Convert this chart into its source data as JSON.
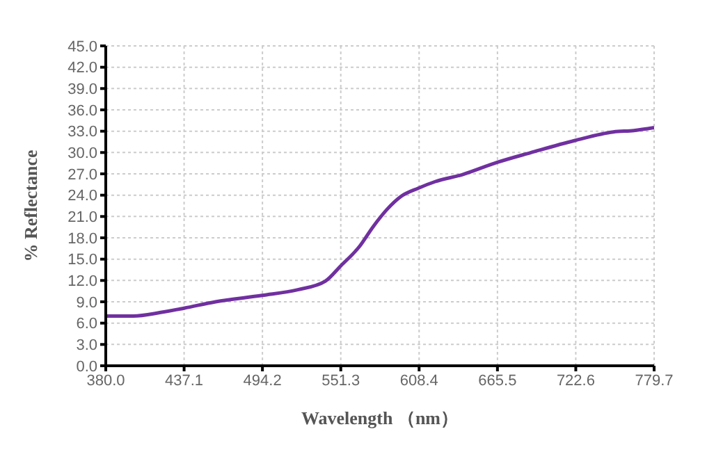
{
  "chart_data": {
    "type": "line",
    "xlabel": "Wavelength （nm）",
    "ylabel": "% Reflectance",
    "grid": true,
    "line_style": "solid",
    "marker": "none",
    "xlim": [
      380,
      779.7
    ],
    "ylim": [
      0,
      45
    ],
    "xticks": [
      {
        "value": 380,
        "label": "380.0"
      },
      437.1,
      494.2,
      551.3,
      608.4,
      665.5,
      722.6,
      779.7
    ],
    "yticks": [
      {
        "value": 0,
        "label": "0.0"
      },
      {
        "value": 3,
        "label": "3.0"
      },
      {
        "value": 6,
        "label": "6.0"
      },
      {
        "value": 9,
        "label": "9.0"
      },
      {
        "value": 12,
        "label": "12.0"
      },
      {
        "value": 15,
        "label": "15.0"
      },
      {
        "value": 18,
        "label": "18.0"
      },
      {
        "value": 21,
        "label": "21.0"
      },
      {
        "value": 24,
        "label": "24.0"
      },
      {
        "value": 27,
        "label": "27.0"
      },
      {
        "value": 30,
        "label": "30.0"
      },
      {
        "value": 33,
        "label": "33.0"
      },
      {
        "value": 36,
        "label": "36.0"
      },
      {
        "value": 39,
        "label": "39.0"
      },
      {
        "value": 42,
        "label": "42.0"
      },
      {
        "value": 45,
        "label": "45.0"
      }
    ],
    "x": [
      380,
      400,
      420,
      437,
      460,
      494,
      520,
      540,
      551,
      565,
      575,
      585,
      595,
      608,
      620,
      640,
      665,
      690,
      722,
      750,
      765,
      779.7
    ],
    "series": [
      {
        "color": "#7030a0",
        "values": [
          7.0,
          7.0,
          7.5,
          8.1,
          9.0,
          9.9,
          10.7,
          11.9,
          14.0,
          16.8,
          19.6,
          22.0,
          23.8,
          25.0,
          25.9,
          26.9,
          28.6,
          30.0,
          31.7,
          32.9,
          33.1,
          33.5
        ]
      }
    ]
  }
}
